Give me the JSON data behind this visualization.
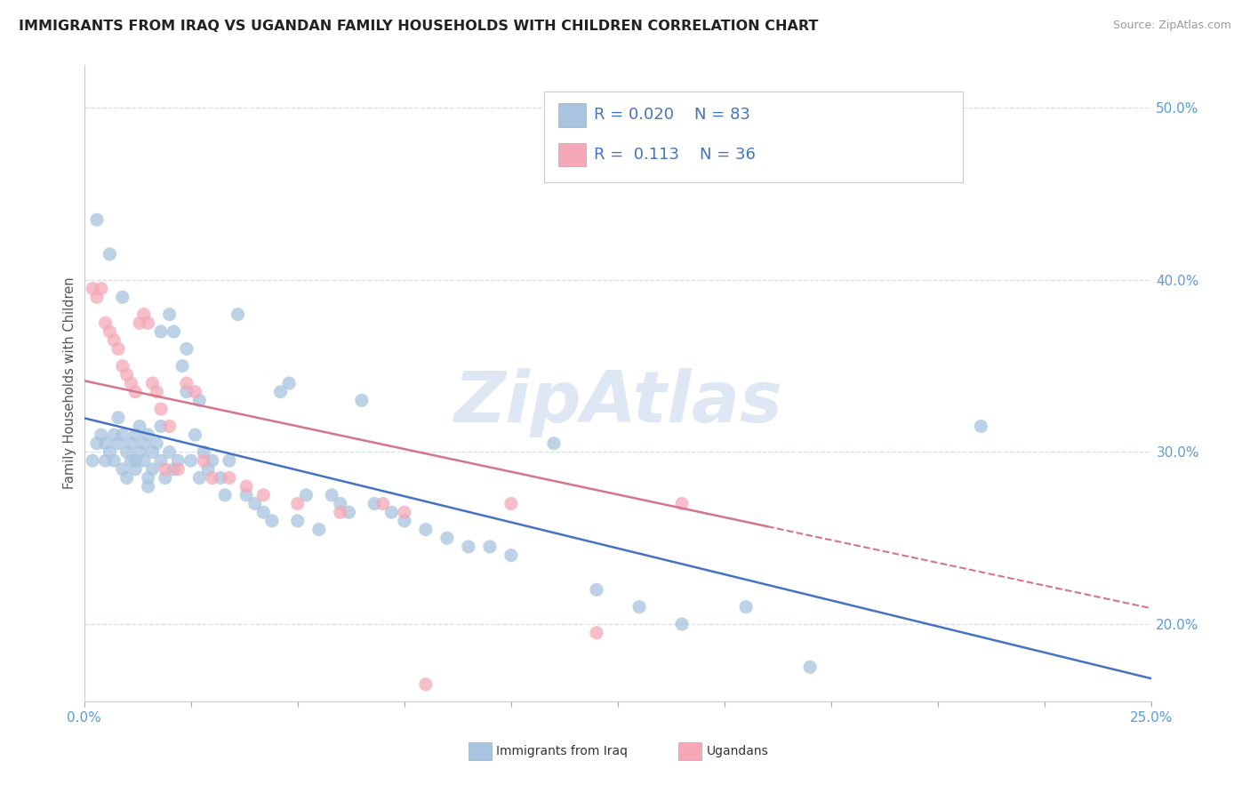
{
  "title": "IMMIGRANTS FROM IRAQ VS UGANDAN FAMILY HOUSEHOLDS WITH CHILDREN CORRELATION CHART",
  "source": "Source: ZipAtlas.com",
  "ylabel": "Family Households with Children",
  "xmin": 0.0,
  "xmax": 0.25,
  "ymin": 0.155,
  "ymax": 0.525,
  "y_tick_vals_right": [
    0.2,
    0.3,
    0.4,
    0.5
  ],
  "legend1_label": "Immigrants from Iraq",
  "legend2_label": "Ugandans",
  "R1": "0.020",
  "N1": "83",
  "R2": "0.113",
  "N2": "36",
  "color_iraq": "#a8c4e0",
  "color_uganda": "#f4a8b8",
  "trendline_color_iraq": "#4472c4",
  "trendline_color_uganda": "#d4758a",
  "background_color": "#ffffff",
  "watermark_color": "#c8d8ec",
  "grid_color": "#d8dfe8",
  "iraq_x": [
    0.002,
    0.003,
    0.004,
    0.005,
    0.005,
    0.006,
    0.007,
    0.007,
    0.008,
    0.008,
    0.009,
    0.009,
    0.01,
    0.01,
    0.011,
    0.011,
    0.012,
    0.012,
    0.013,
    0.013,
    0.014,
    0.014,
    0.015,
    0.015,
    0.016,
    0.016,
    0.017,
    0.018,
    0.018,
    0.019,
    0.02,
    0.02,
    0.021,
    0.022,
    0.023,
    0.024,
    0.025,
    0.026,
    0.027,
    0.028,
    0.029,
    0.03,
    0.032,
    0.033,
    0.034,
    0.036,
    0.038,
    0.04,
    0.042,
    0.044,
    0.046,
    0.048,
    0.05,
    0.052,
    0.055,
    0.058,
    0.06,
    0.062,
    0.065,
    0.068,
    0.072,
    0.075,
    0.08,
    0.085,
    0.09,
    0.095,
    0.1,
    0.11,
    0.12,
    0.13,
    0.14,
    0.155,
    0.17,
    0.003,
    0.006,
    0.009,
    0.012,
    0.015,
    0.018,
    0.021,
    0.024,
    0.027,
    0.21
  ],
  "iraq_y": [
    0.295,
    0.305,
    0.31,
    0.295,
    0.305,
    0.3,
    0.31,
    0.295,
    0.305,
    0.32,
    0.29,
    0.31,
    0.3,
    0.285,
    0.305,
    0.295,
    0.31,
    0.29,
    0.3,
    0.315,
    0.295,
    0.305,
    0.285,
    0.31,
    0.3,
    0.29,
    0.305,
    0.295,
    0.315,
    0.285,
    0.3,
    0.38,
    0.29,
    0.295,
    0.35,
    0.36,
    0.295,
    0.31,
    0.285,
    0.3,
    0.29,
    0.295,
    0.285,
    0.275,
    0.295,
    0.38,
    0.275,
    0.27,
    0.265,
    0.26,
    0.335,
    0.34,
    0.26,
    0.275,
    0.255,
    0.275,
    0.27,
    0.265,
    0.33,
    0.27,
    0.265,
    0.26,
    0.255,
    0.25,
    0.245,
    0.245,
    0.24,
    0.305,
    0.22,
    0.21,
    0.2,
    0.21,
    0.175,
    0.435,
    0.415,
    0.39,
    0.295,
    0.28,
    0.37,
    0.37,
    0.335,
    0.33,
    0.315
  ],
  "uganda_x": [
    0.002,
    0.003,
    0.004,
    0.005,
    0.006,
    0.007,
    0.008,
    0.009,
    0.01,
    0.011,
    0.012,
    0.013,
    0.014,
    0.015,
    0.016,
    0.017,
    0.018,
    0.019,
    0.02,
    0.022,
    0.024,
    0.026,
    0.028,
    0.03,
    0.034,
    0.038,
    0.042,
    0.05,
    0.06,
    0.07,
    0.075,
    0.08,
    0.1,
    0.12,
    0.14,
    0.16
  ],
  "uganda_y": [
    0.395,
    0.39,
    0.395,
    0.375,
    0.37,
    0.365,
    0.36,
    0.35,
    0.345,
    0.34,
    0.335,
    0.375,
    0.38,
    0.375,
    0.34,
    0.335,
    0.325,
    0.29,
    0.315,
    0.29,
    0.34,
    0.335,
    0.295,
    0.285,
    0.285,
    0.28,
    0.275,
    0.27,
    0.265,
    0.27,
    0.265,
    0.165,
    0.27,
    0.195,
    0.27,
    0.49
  ]
}
